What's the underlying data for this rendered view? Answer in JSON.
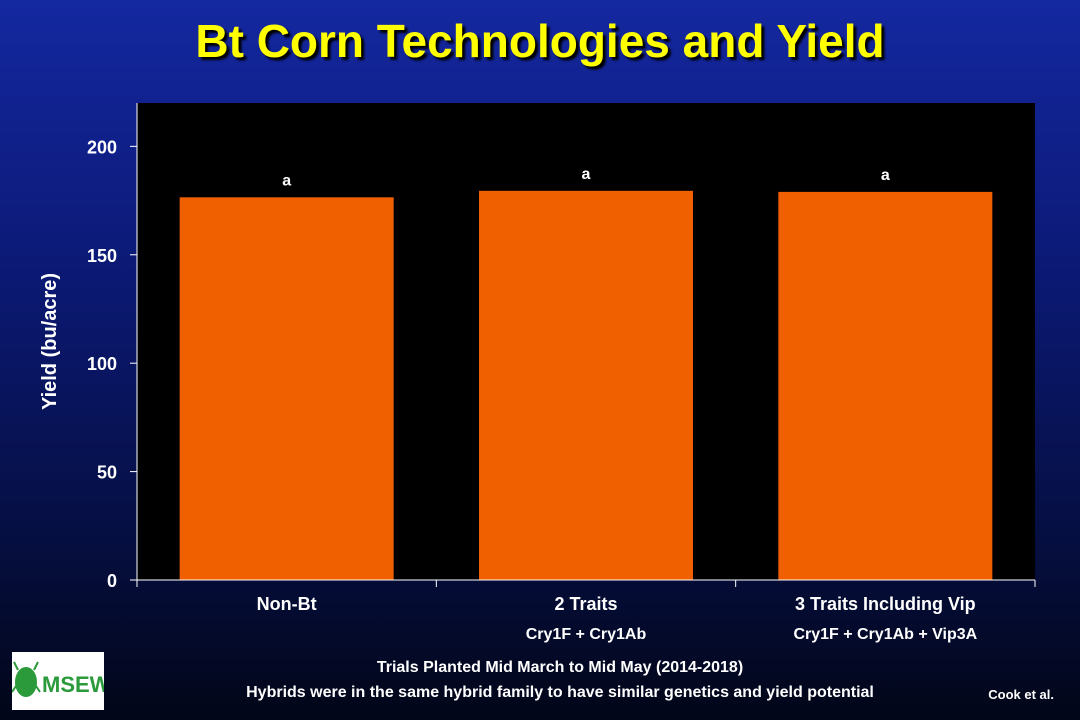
{
  "page": {
    "title": "Bt Corn Technologies and Yield",
    "footnote_line1": "Trials Planted Mid March to Mid May (2014-2018)",
    "footnote_line2": "Hybrids were in the same hybrid family to have similar genetics and yield potential",
    "credit": "Cook et al.",
    "logo_text": "MSEWG"
  },
  "colors": {
    "bar": "#f06000",
    "plot_bg": "#000000",
    "title": "#ffff00",
    "text": "#ffffff",
    "logo_green": "#2a9a3a"
  },
  "chart_data": {
    "type": "bar",
    "categories": [
      "Non-Bt",
      "2 Traits",
      "3 Traits Including Vip"
    ],
    "subcategories": [
      "",
      "Cry1F + Cry1Ab",
      "Cry1F + Cry1Ab + Vip3A"
    ],
    "values": [
      176.5,
      179.5,
      179.0
    ],
    "bar_labels": [
      "a",
      "a",
      "a"
    ],
    "ylabel": "Yield (bu/acre)",
    "ylim": [
      0,
      220
    ],
    "yticks": [
      0,
      50,
      100,
      150,
      200
    ],
    "grid": false,
    "legend": "none"
  }
}
